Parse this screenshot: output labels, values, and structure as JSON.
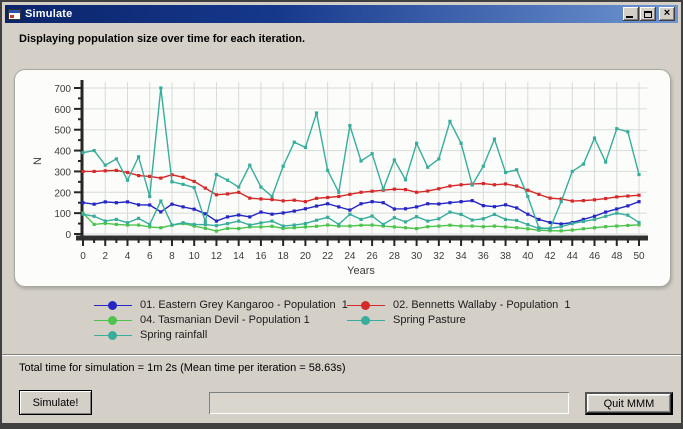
{
  "window": {
    "title": "Simulate",
    "titlebar_buttons": [
      "minimize",
      "maximize",
      "close"
    ],
    "colors": {
      "titlebar_left": "#0a246a",
      "titlebar_right": "#6f96d2",
      "window_background": "#d4d0c8"
    }
  },
  "header": {
    "message": "Displaying population size over time for each iteration."
  },
  "chart_data": {
    "type": "line",
    "xlabel": "Years",
    "ylabel": "N",
    "xlim": [
      0,
      50
    ],
    "ylim": [
      0,
      700
    ],
    "x_tick_step": 2,
    "y_tick_step": 100,
    "grid": true,
    "legend_position": "bottom",
    "x": [
      0,
      1,
      2,
      3,
      4,
      5,
      6,
      7,
      8,
      9,
      10,
      11,
      12,
      13,
      14,
      15,
      16,
      17,
      18,
      19,
      20,
      21,
      22,
      23,
      24,
      25,
      26,
      27,
      28,
      29,
      30,
      31,
      32,
      33,
      34,
      35,
      36,
      37,
      38,
      39,
      40,
      41,
      42,
      43,
      44,
      45,
      46,
      47,
      48,
      49,
      50
    ],
    "series": [
      {
        "name": "01. Eastern Grey Kangaroo - Population  1",
        "color": "#2626c4",
        "values": [
          150,
          143,
          154,
          150,
          154,
          140,
          139,
          106,
          143,
          130,
          119,
          97,
          62,
          82,
          91,
          82,
          105,
          95,
          101,
          110,
          121,
          134,
          145,
          130,
          115,
          145,
          155,
          150,
          120,
          121,
          130,
          145,
          144,
          150,
          155,
          160,
          136,
          131,
          140,
          125,
          95,
          70,
          55,
          48,
          55,
          70,
          85,
          105,
          120,
          135,
          155
        ]
      },
      {
        "name": "02. Bennetts Wallaby - Population  1",
        "color": "#d42a2a",
        "values": [
          300,
          300,
          303,
          305,
          295,
          280,
          276,
          268,
          284,
          272,
          252,
          220,
          188,
          192,
          200,
          172,
          168,
          165,
          159,
          162,
          155,
          171,
          175,
          180,
          190,
          200,
          205,
          210,
          215,
          213,
          200,
          206,
          217,
          230,
          236,
          240,
          242,
          236,
          240,
          230,
          210,
          190,
          172,
          168,
          158,
          160,
          164,
          170,
          178,
          182,
          186
        ]
      },
      {
        "name": "04. Tasmanian Devil - Population 1",
        "color": "#4ec44e",
        "values": [
          100,
          46,
          51,
          46,
          43,
          43,
          34,
          30,
          42,
          50,
          38,
          27,
          14,
          27,
          26,
          34,
          34,
          37,
          27,
          30,
          34,
          37,
          43,
          38,
          38,
          42,
          43,
          38,
          34,
          30,
          26,
          35,
          38,
          42,
          38,
          38,
          35,
          38,
          34,
          30,
          25,
          18,
          16,
          15,
          19,
          25,
          30,
          35,
          38,
          41,
          44
        ]
      },
      {
        "name": "Spring Pasture",
        "color": "#38ad9c",
        "values": [
          390,
          400,
          330,
          360,
          258,
          370,
          180,
          700,
          250,
          238,
          222,
          60,
          285,
          258,
          225,
          330,
          225,
          180,
          325,
          440,
          415,
          580,
          305,
          200,
          520,
          350,
          385,
          215,
          355,
          260,
          435,
          320,
          360,
          540,
          435,
          235,
          325,
          455,
          295,
          308,
          180,
          30,
          25,
          155,
          300,
          335,
          460,
          345,
          505,
          490,
          285
        ]
      },
      {
        "name": "Spring rainfall",
        "color": "#38ad9c",
        "values": [
          95,
          85,
          62,
          70,
          54,
          75,
          46,
          158,
          43,
          54,
          46,
          45,
          40,
          50,
          62,
          43,
          53,
          62,
          38,
          43,
          50,
          66,
          80,
          46,
          95,
          70,
          86,
          46,
          78,
          58,
          83,
          62,
          73,
          105,
          94,
          67,
          73,
          94,
          70,
          65,
          45,
          27,
          27,
          35,
          50,
          60,
          70,
          85,
          100,
          90,
          55
        ]
      }
    ]
  },
  "status": {
    "text": "Total time for simulation = 1m 2s (Mean time per iteration = 58.63s)"
  },
  "controls": {
    "simulate_button": "Simulate!",
    "quit_button": "Quit MMM",
    "progress_percent": 0
  }
}
